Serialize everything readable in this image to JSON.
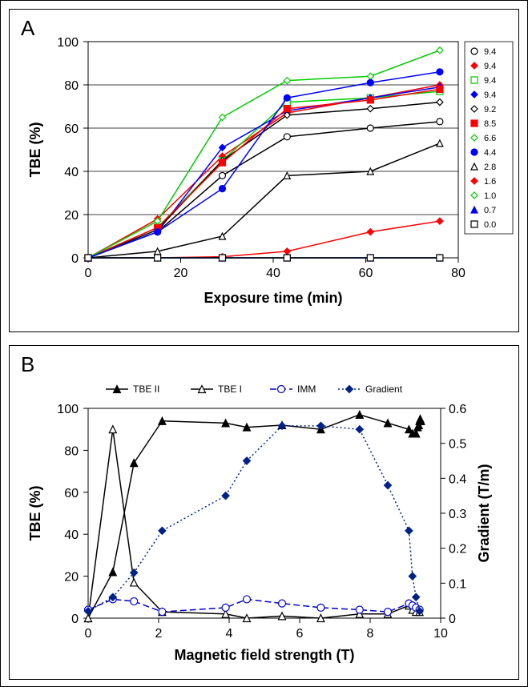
{
  "panelA": {
    "letter": "A",
    "type": "line",
    "xlabel": "Exposure time (min)",
    "ylabel": "TBE (%)",
    "label_fontsize": 18,
    "tick_fontsize": 16,
    "xlim": [
      0,
      80
    ],
    "ylim": [
      0,
      100
    ],
    "xticks": [
      0,
      20,
      40,
      60,
      80
    ],
    "yticks": [
      0,
      20,
      40,
      60,
      80,
      100
    ],
    "background_color": "#ffffff",
    "grid_color": "#000000",
    "legend_border": "#000000",
    "legend_fontsize": 11,
    "series": [
      {
        "label": "9.4",
        "color": "#000000",
        "marker": "circle",
        "filled": false,
        "dash": "",
        "x": [
          0,
          15,
          29,
          43,
          61,
          76
        ],
        "y": [
          0,
          12,
          38,
          56,
          60,
          63
        ]
      },
      {
        "label": "9.4",
        "color": "#ff0000",
        "marker": "diamond",
        "filled": true,
        "dash": "",
        "x": [
          0,
          15,
          29,
          43,
          61,
          76
        ],
        "y": [
          0,
          18,
          47,
          67,
          74,
          80
        ]
      },
      {
        "label": "9.4",
        "color": "#00cc00",
        "marker": "square",
        "filled": false,
        "dash": "",
        "x": [
          0,
          15,
          29,
          43,
          61,
          76
        ],
        "y": [
          0,
          14,
          45,
          72,
          74,
          77
        ]
      },
      {
        "label": "9.4",
        "color": "#0000ff",
        "marker": "diamond",
        "filled": true,
        "dash": "",
        "x": [
          0,
          15,
          29,
          43,
          61,
          76
        ],
        "y": [
          0,
          12,
          51,
          68,
          74,
          79
        ]
      },
      {
        "label": "9.2",
        "color": "#000000",
        "marker": "diamond",
        "filled": false,
        "dash": "",
        "x": [
          0,
          15,
          29,
          43,
          61,
          76
        ],
        "y": [
          0,
          13,
          45,
          66,
          69,
          72
        ]
      },
      {
        "label": "8.5",
        "color": "#ff0000",
        "marker": "square",
        "filled": true,
        "dash": "",
        "x": [
          0,
          15,
          29,
          43,
          61,
          76
        ],
        "y": [
          0,
          14,
          44,
          69,
          73,
          78
        ]
      },
      {
        "label": "6.6",
        "color": "#00cc00",
        "marker": "diamond",
        "filled": false,
        "dash": "",
        "x": [
          0,
          15,
          29,
          43,
          61,
          76
        ],
        "y": [
          0,
          17,
          65,
          82,
          84,
          96
        ]
      },
      {
        "label": "4.4",
        "color": "#0000ff",
        "marker": "circle",
        "filled": true,
        "dash": "",
        "x": [
          0,
          15,
          29,
          43,
          61,
          76
        ],
        "y": [
          0,
          12,
          32,
          74,
          81,
          86
        ]
      },
      {
        "label": "2.8",
        "color": "#000000",
        "marker": "triangle",
        "filled": false,
        "dash": "",
        "x": [
          0,
          15,
          29,
          43,
          61,
          76
        ],
        "y": [
          0,
          3,
          10,
          38,
          40,
          53
        ]
      },
      {
        "label": "1.6",
        "color": "#ff0000",
        "marker": "diamond",
        "filled": true,
        "dash": "",
        "x": [
          0,
          15,
          29,
          43,
          61,
          76
        ],
        "y": [
          0,
          0,
          0.5,
          3,
          12,
          17
        ]
      },
      {
        "label": "1.0",
        "color": "#00cc00",
        "marker": "diamond",
        "filled": false,
        "dash": "",
        "x": [
          0,
          15,
          29,
          43,
          61,
          76
        ],
        "y": [
          0,
          0,
          0,
          0,
          0,
          0
        ]
      },
      {
        "label": "0.7",
        "color": "#0000ff",
        "marker": "triangle",
        "filled": true,
        "dash": "",
        "x": [
          0,
          15,
          29,
          43,
          61,
          76
        ],
        "y": [
          0,
          0,
          0,
          0,
          0,
          0
        ]
      },
      {
        "label": "0.0",
        "color": "#000000",
        "marker": "square",
        "filled": false,
        "dash": "",
        "x": [
          0,
          15,
          29,
          43,
          61,
          76
        ],
        "y": [
          0,
          0,
          0,
          0,
          0,
          0
        ]
      }
    ]
  },
  "panelB": {
    "letter": "B",
    "type": "line",
    "xlabel": "Magnetic field strength (T)",
    "ylabel_left": "TBE (%)",
    "ylabel_right": "Gradient (T/m)",
    "label_fontsize": 18,
    "tick_fontsize": 16,
    "xlim": [
      0,
      10
    ],
    "ylim_left": [
      0,
      100
    ],
    "ylim_right": [
      0,
      0.6
    ],
    "xticks": [
      0,
      2,
      4,
      6,
      8,
      10
    ],
    "yticks_left": [
      0,
      20,
      40,
      60,
      80,
      100
    ],
    "yticks_right": [
      0,
      0.1,
      0.2,
      0.3,
      0.4,
      0.5,
      0.6
    ],
    "background_color": "#ffffff",
    "legend_fontsize": 12,
    "series": [
      {
        "label": "TBE II",
        "axis": "left",
        "color": "#000000",
        "marker": "triangle",
        "filled": true,
        "dash": "",
        "x": [
          0,
          0.7,
          1.3,
          2.1,
          3.9,
          4.5,
          5.5,
          6.6,
          7.7,
          8.5,
          9.1,
          9.2,
          9.3,
          9.35,
          9.38,
          9.4,
          9.42,
          9.44
        ],
        "y": [
          0,
          22,
          74,
          94,
          93,
          91,
          92,
          90,
          97,
          93,
          90,
          88,
          88,
          91,
          92,
          94,
          95,
          94
        ]
      },
      {
        "label": "TBE I",
        "axis": "left",
        "color": "#000000",
        "marker": "triangle",
        "filled": false,
        "dash": "",
        "x": [
          0,
          0.7,
          1.3,
          2.1,
          3.9,
          4.5,
          5.5,
          6.6,
          7.7,
          8.5,
          9.1,
          9.2,
          9.3,
          9.4
        ],
        "y": [
          0,
          90,
          17,
          3,
          2,
          0,
          1,
          0,
          2,
          2,
          6,
          4,
          3,
          3
        ]
      },
      {
        "label": "IMM",
        "axis": "left",
        "color": "#0000cc",
        "marker": "circle",
        "filled": false,
        "dash": "8,4",
        "x": [
          0,
          0.7,
          1.3,
          2.1,
          3.9,
          4.5,
          5.5,
          6.6,
          7.7,
          8.5,
          9.1,
          9.2,
          9.3,
          9.4
        ],
        "y": [
          4,
          9,
          8,
          3,
          5,
          9,
          7,
          5,
          4,
          3,
          7,
          6,
          5,
          4
        ]
      },
      {
        "label": "Gradient",
        "axis": "right",
        "color": "#002288",
        "marker": "diamond",
        "filled": true,
        "dash": "2,3",
        "x": [
          0,
          0.7,
          1.3,
          2.1,
          3.9,
          4.5,
          5.5,
          6.6,
          7.7,
          8.5,
          9.1,
          9.2,
          9.3,
          9.4
        ],
        "y": [
          0.02,
          0.06,
          0.13,
          0.25,
          0.35,
          0.45,
          0.55,
          0.55,
          0.54,
          0.38,
          0.25,
          0.12,
          0.06,
          0.02
        ]
      }
    ]
  }
}
